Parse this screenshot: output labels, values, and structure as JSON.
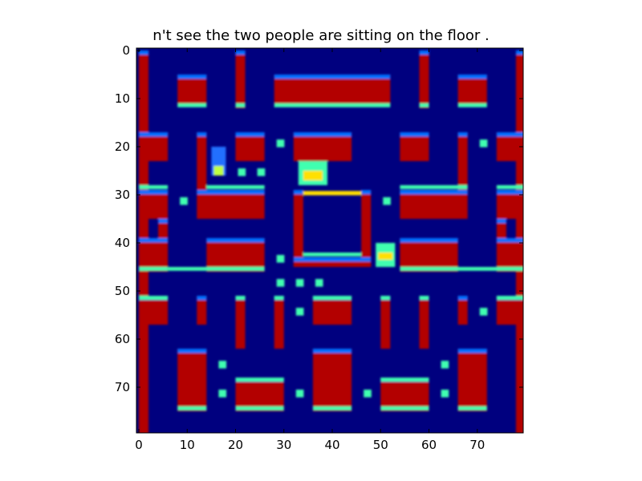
{
  "title": "n't see the two people are sitting on the floor .",
  "axes": {
    "x_ticks": [
      "0",
      "10",
      "20",
      "30",
      "40",
      "50",
      "60",
      "70"
    ],
    "y_ticks": [
      "0",
      "10",
      "20",
      "30",
      "40",
      "50",
      "60",
      "70"
    ],
    "xlim": [
      -0.5,
      79.5
    ],
    "ylim": [
      79.5,
      -0.5
    ]
  },
  "colors": {
    "background": "#00007f",
    "wall": "#b30000",
    "wall_edge_top": "#0070ff",
    "wall_edge_bottom": "#40ffb0",
    "pellet": "#40ffb0",
    "pellet_core": "#c0ff40",
    "ghost_edge": "#ffe000"
  }
}
